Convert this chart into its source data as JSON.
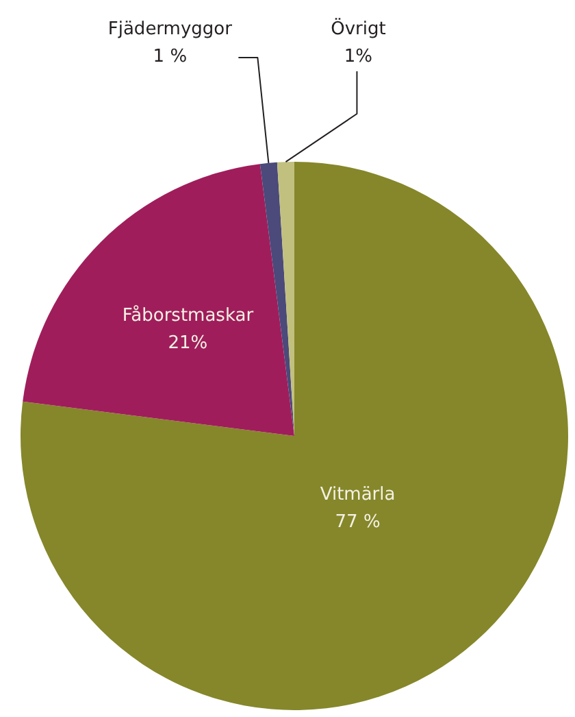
{
  "chart_data": {
    "type": "pie",
    "categories": [
      "Vitmärla",
      "Fåborstmaskar",
      "Fjädermyggor",
      "Övrigt"
    ],
    "values": [
      77,
      21,
      1,
      1
    ],
    "colors": [
      "#85872a",
      "#a01d5b",
      "#4b4a7a",
      "#c2c07e"
    ],
    "value_labels": [
      "77 %",
      "21%",
      "1 %",
      "1%"
    ]
  }
}
